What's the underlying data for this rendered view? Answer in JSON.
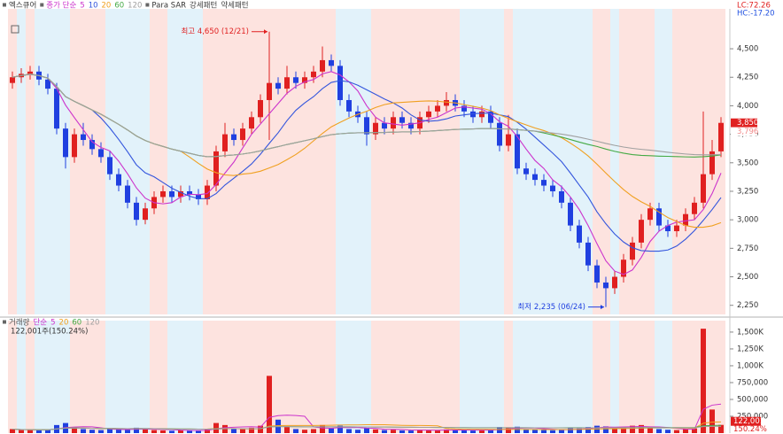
{
  "chart_data": [
    {
      "type": "candlestick",
      "title": "엑스큐어",
      "ma_label": "종가 단순",
      "moving_averages": [
        {
          "name": "5",
          "color": "#cc33cc"
        },
        {
          "name": "10",
          "color": "#3355dd"
        },
        {
          "name": "20",
          "color": "#f0a020"
        },
        {
          "name": "60",
          "color": "#44aa44"
        },
        {
          "name": "120",
          "color": "#a0a0a0"
        }
      ],
      "sar_label": "Para SAR",
      "bands": [
        {
          "name": "강세패턴",
          "color": "#fde3df"
        },
        {
          "name": "약세패턴",
          "color": "#e2f2fa"
        }
      ],
      "up_color": "#e02020",
      "down_color": "#2040e0",
      "bullish": [
        true,
        false,
        true,
        false,
        false,
        false,
        false,
        true,
        true,
        true,
        true,
        false,
        false,
        false,
        false,
        false,
        true,
        true,
        false,
        false,
        false,
        false,
        true,
        true,
        true,
        true,
        true,
        true,
        true,
        true,
        true,
        true,
        true,
        true,
        true,
        true,
        true,
        false,
        false,
        false,
        false,
        true,
        true,
        true,
        true,
        true,
        true,
        true,
        true,
        true,
        true,
        false,
        false,
        false,
        false,
        false,
        true,
        false,
        false,
        false,
        false,
        false,
        false,
        false,
        false,
        false,
        true,
        true,
        false,
        true,
        true,
        true,
        true,
        false,
        false,
        true,
        true,
        true,
        true,
        true,
        true
      ],
      "ohlc": [
        [
          4200,
          4300,
          4150,
          4250
        ],
        [
          4250,
          4330,
          4200,
          4280
        ],
        [
          4280,
          4350,
          4230,
          4300
        ],
        [
          4300,
          4350,
          4180,
          4230
        ],
        [
          4230,
          4280,
          4100,
          4150
        ],
        [
          4150,
          4200,
          3750,
          3800
        ],
        [
          3800,
          3850,
          3450,
          3550
        ],
        [
          3550,
          3800,
          3500,
          3750
        ],
        [
          3750,
          3850,
          3650,
          3700
        ],
        [
          3700,
          3750,
          3570,
          3620
        ],
        [
          3620,
          3680,
          3500,
          3550
        ],
        [
          3550,
          3600,
          3350,
          3400
        ],
        [
          3400,
          3450,
          3250,
          3300
        ],
        [
          3300,
          3350,
          3100,
          3150
        ],
        [
          3150,
          3200,
          2950,
          3000
        ],
        [
          3000,
          3150,
          2960,
          3100
        ],
        [
          3100,
          3250,
          3050,
          3200
        ],
        [
          3200,
          3300,
          3150,
          3250
        ],
        [
          3250,
          3300,
          3150,
          3200
        ],
        [
          3200,
          3300,
          3150,
          3250
        ],
        [
          3250,
          3300,
          3170,
          3220
        ],
        [
          3220,
          3270,
          3130,
          3180
        ],
        [
          3180,
          3350,
          3130,
          3300
        ],
        [
          3300,
          3650,
          3250,
          3600
        ],
        [
          3600,
          3850,
          3550,
          3750
        ],
        [
          3750,
          3800,
          3650,
          3700
        ],
        [
          3700,
          3850,
          3650,
          3800
        ],
        [
          3800,
          3950,
          3750,
          3900
        ],
        [
          3900,
          4100,
          3850,
          4050
        ],
        [
          4050,
          4650,
          3700,
          4200
        ],
        [
          4200,
          4250,
          4100,
          4150
        ],
        [
          4150,
          4350,
          4100,
          4250
        ],
        [
          4250,
          4300,
          4150,
          4200
        ],
        [
          4200,
          4300,
          4150,
          4250
        ],
        [
          4250,
          4350,
          4200,
          4300
        ],
        [
          4300,
          4520,
          4250,
          4400
        ],
        [
          4400,
          4450,
          4300,
          4350
        ],
        [
          4350,
          4400,
          4000,
          4050
        ],
        [
          4050,
          4100,
          3900,
          3950
        ],
        [
          3950,
          4000,
          3850,
          3900
        ],
        [
          3900,
          3950,
          3650,
          3750
        ],
        [
          3750,
          3900,
          3700,
          3850
        ],
        [
          3850,
          3900,
          3750,
          3800
        ],
        [
          3800,
          3950,
          3750,
          3900
        ],
        [
          3900,
          3950,
          3800,
          3850
        ],
        [
          3850,
          3900,
          3750,
          3800
        ],
        [
          3800,
          3950,
          3750,
          3900
        ],
        [
          3900,
          4000,
          3850,
          3950
        ],
        [
          3950,
          4050,
          3900,
          4000
        ],
        [
          4000,
          4120,
          3950,
          4050
        ],
        [
          4050,
          4100,
          3950,
          4000
        ],
        [
          4000,
          4050,
          3900,
          3950
        ],
        [
          3950,
          4000,
          3850,
          3900
        ],
        [
          3900,
          4000,
          3850,
          3950
        ],
        [
          3950,
          4000,
          3800,
          3850
        ],
        [
          3850,
          3900,
          3600,
          3650
        ],
        [
          3650,
          3920,
          3600,
          3750
        ],
        [
          3750,
          3800,
          3400,
          3450
        ],
        [
          3450,
          3500,
          3350,
          3400
        ],
        [
          3400,
          3450,
          3300,
          3350
        ],
        [
          3350,
          3400,
          3250,
          3300
        ],
        [
          3300,
          3350,
          3200,
          3250
        ],
        [
          3250,
          3300,
          3100,
          3150
        ],
        [
          3150,
          3200,
          2900,
          2950
        ],
        [
          2950,
          3000,
          2750,
          2800
        ],
        [
          2800,
          2850,
          2550,
          2600
        ],
        [
          2600,
          2650,
          2400,
          2450
        ],
        [
          2450,
          2500,
          2235,
          2400
        ],
        [
          2400,
          2550,
          2350,
          2500
        ],
        [
          2500,
          2700,
          2450,
          2650
        ],
        [
          2650,
          2850,
          2600,
          2800
        ],
        [
          2800,
          3050,
          2750,
          3000
        ],
        [
          3000,
          3150,
          2950,
          3100
        ],
        [
          3100,
          3150,
          2900,
          2950
        ],
        [
          2950,
          3000,
          2850,
          2900
        ],
        [
          2900,
          3000,
          2850,
          2950
        ],
        [
          2950,
          3100,
          2900,
          3050
        ],
        [
          3050,
          3200,
          3000,
          3150
        ],
        [
          3150,
          3950,
          3100,
          3400
        ],
        [
          3400,
          3700,
          3350,
          3600
        ],
        [
          3600,
          3900,
          3550,
          3850
        ]
      ],
      "ylim": [
        2170,
        4850
      ],
      "yticks": [
        {
          "value": 2250,
          "label": "2,250"
        },
        {
          "value": 2500,
          "label": "2,500"
        },
        {
          "value": 2750,
          "label": "2,750"
        },
        {
          "value": 3000,
          "label": "3,000"
        },
        {
          "value": 3250,
          "label": "3,250"
        },
        {
          "value": 3500,
          "label": "3,500"
        },
        {
          "value": 3750,
          "label": "3,750"
        },
        {
          "value": 4000,
          "label": "4,000"
        },
        {
          "value": 4250,
          "label": "4,250"
        },
        {
          "value": 4500,
          "label": "4,500"
        }
      ],
      "annotations": [
        {
          "text": "최고 4,650 (12/21)",
          "value": 4650,
          "color": "#e02020"
        },
        {
          "text": "최저 2,235 (06/24)",
          "value": 2235,
          "color": "#2040e0"
        }
      ],
      "price_markers": [
        {
          "value": 3850,
          "label": "3,850",
          "color": "#e02020"
        },
        {
          "value": 3796,
          "label": "3,796",
          "color": "#f08a8a"
        }
      ],
      "indicators": [
        {
          "text": "LC:72.26",
          "color": "#e02020"
        },
        {
          "text": "HC:-17.20",
          "color": "#2050e0"
        }
      ]
    },
    {
      "type": "bar",
      "title": "거래량",
      "ma_label": "단순",
      "subtitle": "122,001주(150.24%)",
      "moving_averages": [
        {
          "name": "5",
          "color": "#cc33cc"
        },
        {
          "name": "20",
          "color": "#f0a020"
        },
        {
          "name": "60",
          "color": "#44aa44"
        },
        {
          "name": "120",
          "color": "#a0a0a0"
        }
      ],
      "values": [
        60000,
        45000,
        50000,
        40000,
        55000,
        120000,
        150000,
        90000,
        60000,
        50000,
        45000,
        60000,
        55000,
        50000,
        80000,
        60000,
        45000,
        40000,
        35000,
        40000,
        38000,
        35000,
        60000,
        150000,
        120000,
        70000,
        60000,
        80000,
        110000,
        850000,
        200000,
        90000,
        60000,
        50000,
        60000,
        120000,
        70000,
        110000,
        60000,
        50000,
        80000,
        55000,
        45000,
        50000,
        40000,
        38000,
        50000,
        45000,
        42000,
        55000,
        45000,
        40000,
        38000,
        45000,
        50000,
        90000,
        80000,
        95000,
        60000,
        50000,
        45000,
        42000,
        50000,
        80000,
        70000,
        90000,
        110000,
        100000,
        70000,
        90000,
        110000,
        120000,
        80000,
        60000,
        50000,
        45000,
        60000,
        70000,
        1550000,
        350000,
        122001
      ],
      "ylim": [
        0,
        1670000
      ],
      "yticks": [
        {
          "value": 250000,
          "label": "250,000"
        },
        {
          "value": 500000,
          "label": "500,000"
        },
        {
          "value": 750000,
          "label": "750,000"
        },
        {
          "value": 1000000,
          "label": "1,000K"
        },
        {
          "value": 1250000,
          "label": "1,250K"
        },
        {
          "value": 1500000,
          "label": "1,500K"
        }
      ],
      "markers": [
        {
          "value": 122001,
          "label": "122,001",
          "color": "#e02020"
        }
      ],
      "ratio_label": "150.24%"
    }
  ]
}
